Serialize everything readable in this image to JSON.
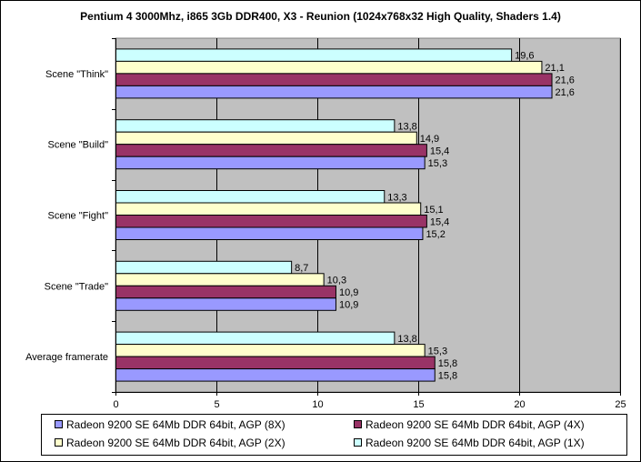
{
  "chart_data": {
    "type": "bar",
    "orientation": "horizontal",
    "title": "Pentium 4 3000Mhz, i865 3Gb DDR400, X3 - Reunion (1024x768x32 High Quality, Shaders 1.4)",
    "xlabel": "",
    "ylabel": "",
    "xlim": [
      0,
      25
    ],
    "xticks": [
      "0",
      "5",
      "10",
      "15",
      "20",
      "25"
    ],
    "grid": true,
    "legend_position": "bottom",
    "categories": [
      "Scene \"Think\"",
      "Scene \"Build\"",
      "Scene \"Fight\"",
      "Scene \"Trade\"",
      "Average framerate"
    ],
    "series": [
      {
        "name": "Radeon 9200 SE 64Mb DDR 64bit, AGP (1X)",
        "color": "#ccffff",
        "values": [
          19.6,
          13.8,
          13.3,
          8.7,
          13.8
        ],
        "labels": [
          "19,6",
          "13,8",
          "13,3",
          "8,7",
          "13,8"
        ]
      },
      {
        "name": "Radeon 9200 SE 64Mb DDR 64bit, AGP (2X)",
        "color": "#ffffcc",
        "values": [
          21.1,
          14.9,
          15.1,
          10.3,
          15.3
        ],
        "labels": [
          "21,1",
          "14,9",
          "15,1",
          "10,3",
          "15,3"
        ]
      },
      {
        "name": "Radeon 9200 SE 64Mb DDR 64bit, AGP (4X)",
        "color": "#993366",
        "values": [
          21.6,
          15.4,
          15.4,
          10.9,
          15.8
        ],
        "labels": [
          "21,6",
          "15,4",
          "15,4",
          "10,9",
          "15,8"
        ]
      },
      {
        "name": "Radeon 9200 SE 64Mb DDR 64bit, AGP (8X)",
        "color": "#9999ff",
        "values": [
          21.6,
          15.3,
          15.2,
          10.9,
          15.8
        ],
        "labels": [
          "21,6",
          "15,3",
          "15,2",
          "10,9",
          "15,8"
        ]
      }
    ],
    "legend_order": [
      3,
      2,
      1,
      0
    ],
    "colors": {
      "plot_background": "#c0c0c0",
      "gridline": "#000000"
    }
  }
}
